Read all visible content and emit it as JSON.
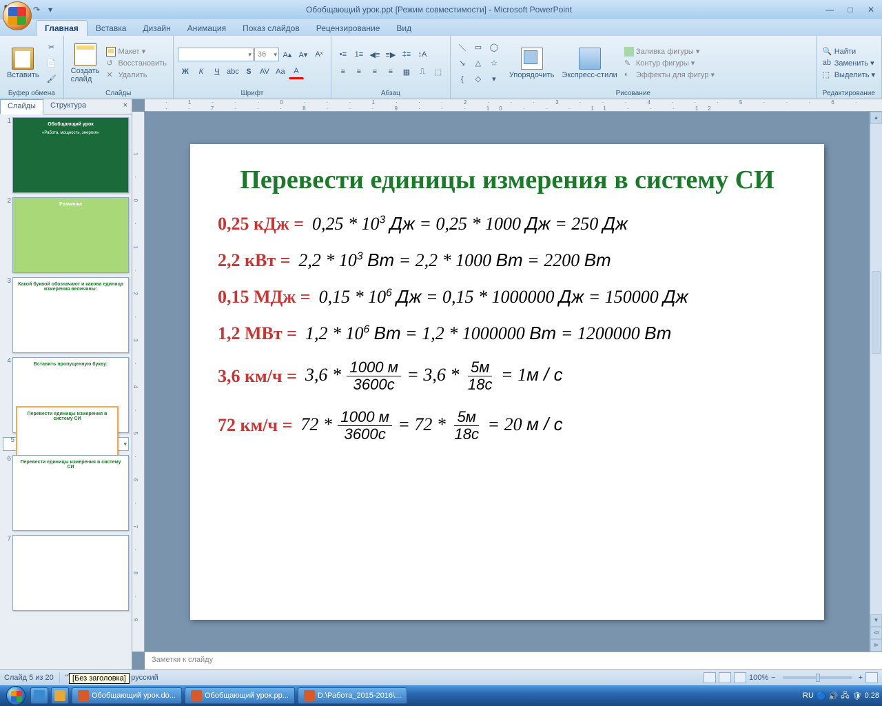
{
  "window": {
    "title": "Обобщающий урок.ppt [Режим совместимости] - Microsoft PowerPoint"
  },
  "tabs": [
    "Главная",
    "Вставка",
    "Дизайн",
    "Анимация",
    "Показ слайдов",
    "Рецензирование",
    "Вид"
  ],
  "active_tab": 0,
  "ribbon": {
    "clipboard": {
      "label": "Буфер обмена",
      "paste": "Вставить"
    },
    "slides": {
      "label": "Слайды",
      "new": "Создать\nслайд",
      "layout": "Макет",
      "reset": "Восстановить",
      "delete": "Удалить"
    },
    "font": {
      "label": "Шрифт",
      "size": "36"
    },
    "paragraph": {
      "label": "Абзац"
    },
    "drawing": {
      "label": "Рисование",
      "arrange": "Упорядочить",
      "styles": "Экспресс-стили",
      "fill": "Заливка фигуры",
      "outline": "Контур фигуры",
      "effects": "Эффекты для фигур"
    },
    "editing": {
      "label": "Редактирование",
      "find": "Найти",
      "replace": "Заменить",
      "select": "Выделить"
    }
  },
  "leftpanel": {
    "tabs": [
      "Слайды",
      "Структура"
    ],
    "thumbs": [
      {
        "n": "1",
        "title": "Обобщающий урок",
        "sub": "«Работа, мощность, энергия»",
        "bg": "#1a6a3a"
      },
      {
        "n": "2",
        "title": "Разминка",
        "bg": "#a8d878"
      },
      {
        "n": "3",
        "title": "Какой буквой обозначают и какова единица измерения величины:",
        "bg": "#fff"
      },
      {
        "n": "4",
        "title": "Вставить пропущенную букву:",
        "bg": "#fff"
      },
      {
        "n": "5",
        "title": "Перевести единицы измерения в систему СИ",
        "bg": "#fff",
        "selected": true
      },
      {
        "n": "6",
        "title": "Перевести единицы измерения в систему СИ",
        "bg": "#fff"
      },
      {
        "n": "7",
        "title": "",
        "bg": "#fff"
      }
    ]
  },
  "slide": {
    "title": "Перевести единицы измерения в систему СИ",
    "title_color": "#1a7a2a",
    "lhs_color": "#cc3333",
    "rows": [
      {
        "lhs": "0,25 кДж =",
        "rhs_html": "0,25 * 10<span class='sup'>3</span> <i>Дж</i> = 0,25 * 1000 <i>Дж</i> = 250 <i>Дж</i>"
      },
      {
        "lhs": "2,2 кВт =",
        "rhs_html": "2,2 * 10<span class='sup'>3</span> <i>Вт</i> = 2,2 * 1000 <i>Вт</i> = 2200 <i>Вт</i>"
      },
      {
        "lhs": "0,15 МДж =",
        "rhs_html": "0,15 * 10<span class='sup'>6</span> <i>Дж</i> = 0,15 * 1000000 <i>Дж</i> = 150000 <i>Дж</i>"
      },
      {
        "lhs": "1,2 МВт =",
        "rhs_html": "1,2 * 10<span class='sup'>6</span> <i>Вт</i> = 1,2 * 1000000 <i>Вт</i> = 1200000 <i>Вт</i>"
      },
      {
        "lhs": "3,6 км/ч =",
        "rhs_html": "3,6 * <span class='frac'><span class='n'>1000 <i>м</i></span><span class='d'>3600<i>с</i></span></span> = 3,6 * <span class='frac'><span class='n'>5<i>м</i></span><span class='d'>18<i>с</i></span></span> = 1<i>м / с</i>"
      },
      {
        "lhs": "72 км/ч =",
        "rhs_html": "72 * <span class='frac'><span class='n'>1000 <i>м</i></span><span class='d'>3600<i>с</i></span></span> = 72 * <span class='frac'><span class='n'>5<i>м</i></span><span class='d'>18<i>с</i></span></span> = 20 <i>м / с</i>"
      }
    ]
  },
  "notes": "Заметки к слайду",
  "tooltip": "[Без заголовка]",
  "status": {
    "slide": "Слайд 5 из 20",
    "theme": "\"Тема Office\"",
    "lang": "русский",
    "zoom": "100%"
  },
  "taskbar": {
    "items": [
      {
        "label": "Обобщающий урок.do..."
      },
      {
        "label": "Обобщающий урок.pp..."
      },
      {
        "label": "D:\\Работа_2015-2016\\..."
      }
    ],
    "lang": "RU",
    "time": "0:28"
  }
}
